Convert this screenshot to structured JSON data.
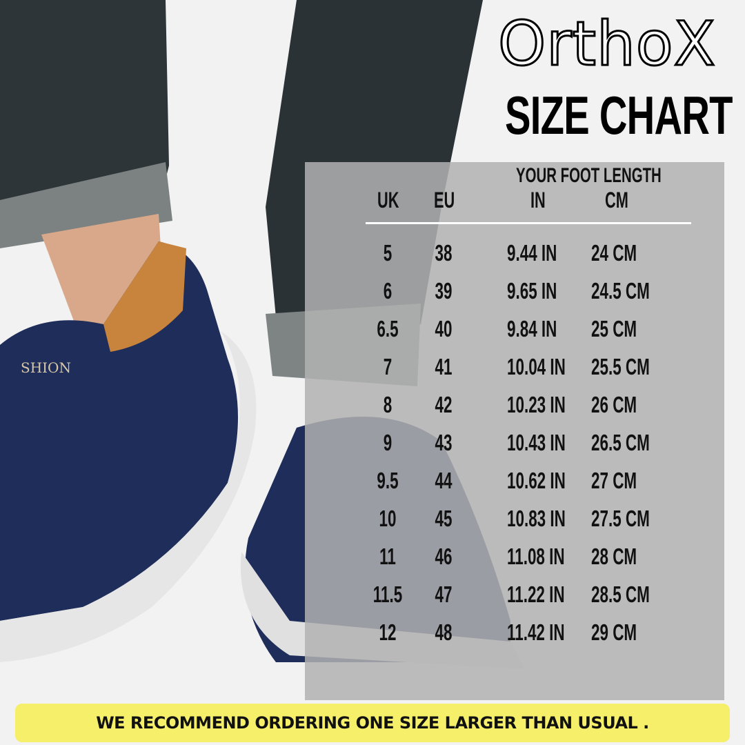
{
  "brand": {
    "logo_text": "OrthoX"
  },
  "title": "SIZE CHART",
  "table": {
    "group_header": "YOUR FOOT LENGTH",
    "headers": {
      "uk": "UK",
      "eu": "EU",
      "in": "IN",
      "cm": "CM"
    },
    "rows": [
      {
        "uk": "5",
        "eu": "38",
        "in": "9.44 IN",
        "cm": "24 CM"
      },
      {
        "uk": "6",
        "eu": "39",
        "in": "9.65 IN",
        "cm": "24.5 CM"
      },
      {
        "uk": "6.5",
        "eu": "40",
        "in": "9.84 IN",
        "cm": "25 CM"
      },
      {
        "uk": "7",
        "eu": "41",
        "in": "10.04 IN",
        "cm": "25.5 CM"
      },
      {
        "uk": "8",
        "eu": "42",
        "in": "10.23 IN",
        "cm": "26 CM"
      },
      {
        "uk": "9",
        "eu": "43",
        "in": "10.43 IN",
        "cm": "26.5 CM"
      },
      {
        "uk": "9.5",
        "eu": "44",
        "in": "10.62 IN",
        "cm": "27 CM"
      },
      {
        "uk": "10",
        "eu": "45",
        "in": "10.83 IN",
        "cm": "27.5 CM"
      },
      {
        "uk": "11",
        "eu": "46",
        "in": "11.08 IN",
        "cm": "28 CM"
      },
      {
        "uk": "11.5",
        "eu": "47",
        "in": "11.22 IN",
        "cm": "28.5 CM"
      },
      {
        "uk": "12",
        "eu": "48",
        "in": "11.42 IN",
        "cm": "29 CM"
      }
    ]
  },
  "banner": {
    "text": "WE RECOMMEND ORDERING ONE SIZE LARGER THAN USUAL .",
    "color": "#f5ee5a"
  },
  "shoe_brand_text": "SHION",
  "colors": {
    "jeans": "#2c3438",
    "shoe": "#1f2d5a",
    "accent": "#c8843c",
    "sole": "#e6e6e6"
  }
}
